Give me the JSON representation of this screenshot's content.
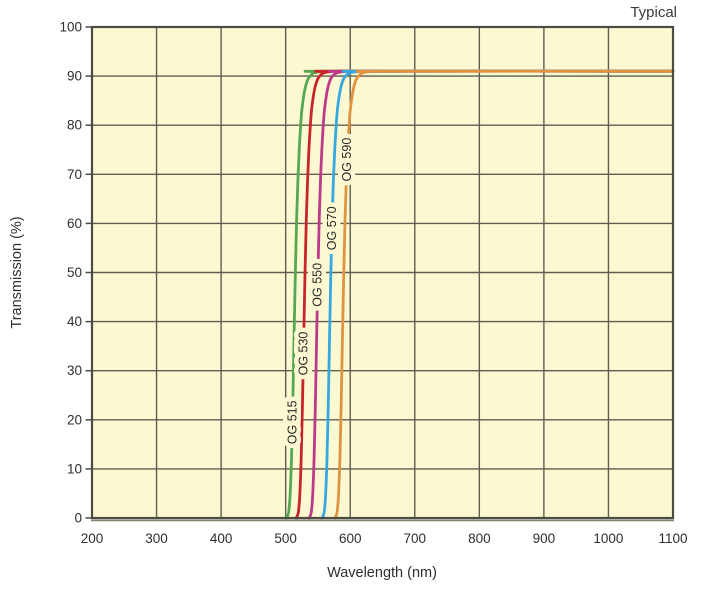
{
  "chart_data": {
    "type": "line",
    "title": "Typical",
    "xlabel": "Wavelength (nm)",
    "ylabel": "Transmission (%)",
    "xlim": [
      200,
      1100
    ],
    "ylim": [
      0,
      100
    ],
    "x_ticks": [
      200,
      300,
      400,
      500,
      600,
      700,
      800,
      900,
      1000,
      1100
    ],
    "y_ticks": [
      0,
      10,
      20,
      30,
      40,
      50,
      60,
      70,
      80,
      90,
      100
    ],
    "grid": true,
    "legend_position": "labels-on-curves",
    "plot_bg_color": "#FCF9D2",
    "grid_color": "#5E5D50",
    "border_color": "#4C4C45",
    "border_shadow_color": "#83836F",
    "text_color": "#2E2E2E",
    "plateau_transmission_pct": 91,
    "transmission_profile_pct": [
      0,
      0.4,
      1.5,
      5,
      12,
      23,
      37,
      50,
      61,
      69,
      75,
      79.5,
      83,
      86,
      88,
      89.5,
      90.3,
      90.7,
      90.9,
      91,
      91
    ],
    "series": [
      {
        "name": "OG 515",
        "color": "#55A851",
        "cut_on_50pct_nm": 515,
        "label_center_pct": 19.5,
        "wavelengths_nm": [
          501,
          503,
          505,
          507,
          509,
          511,
          513,
          515,
          517,
          519,
          521,
          523,
          525,
          528,
          531,
          535,
          540,
          545,
          555,
          575,
          1100
        ]
      },
      {
        "name": "OG 530",
        "color": "#C9242B",
        "cut_on_50pct_nm": 530,
        "label_center_pct": 33.5,
        "wavelengths_nm": [
          516,
          518,
          520,
          522,
          524,
          526,
          528,
          530,
          532,
          534,
          536,
          538,
          540,
          543,
          546,
          550,
          555,
          560,
          570,
          590,
          1100
        ]
      },
      {
        "name": "OG 550",
        "color": "#BC3A8A",
        "cut_on_50pct_nm": 550,
        "label_center_pct": 47.5,
        "wavelengths_nm": [
          536,
          538,
          540,
          542,
          544,
          546,
          548,
          550,
          552,
          554,
          556,
          558,
          560,
          563,
          566,
          570,
          575,
          580,
          590,
          610,
          1100
        ]
      },
      {
        "name": "OG 570",
        "color": "#35A8DF",
        "cut_on_50pct_nm": 570,
        "label_center_pct": 59,
        "wavelengths_nm": [
          556,
          558,
          560,
          562,
          564,
          566,
          568,
          570,
          572,
          574,
          576,
          578,
          580,
          583,
          586,
          590,
          595,
          600,
          610,
          630,
          1100
        ]
      },
      {
        "name": "OG 590",
        "color": "#E0943F",
        "cut_on_50pct_nm": 590,
        "label_center_pct": 73,
        "wavelengths_nm": [
          576,
          578,
          580,
          582,
          584,
          586,
          588,
          590,
          592,
          594,
          596,
          598,
          600,
          603,
          606,
          610,
          615,
          620,
          630,
          650,
          1100
        ]
      }
    ]
  }
}
